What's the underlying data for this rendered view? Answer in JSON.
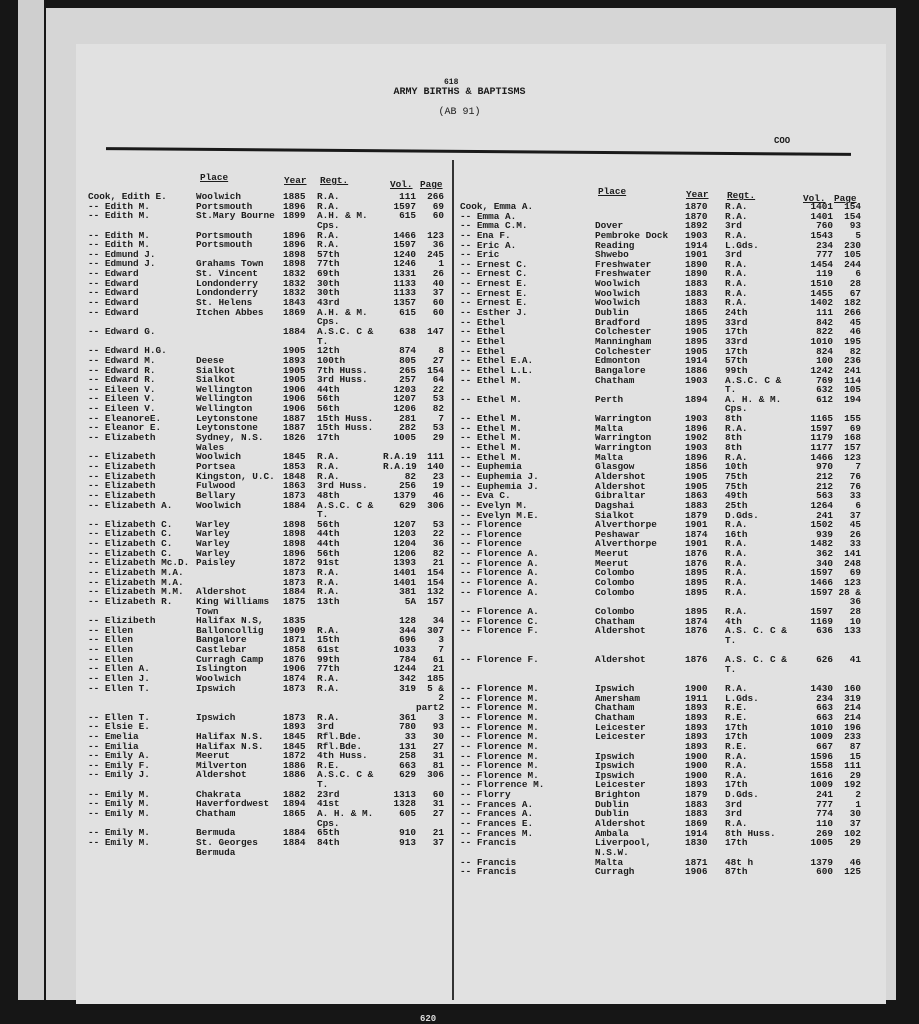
{
  "header": {
    "page_number": "618",
    "title": "ARMY BIRTHS & BAPTISMS",
    "subtitle": "(AB 91)",
    "index_code": "COO"
  },
  "columns": {
    "place": "Place",
    "year": "Year",
    "regt": "Regt.",
    "vol": "Vol.",
    "page": "Page"
  },
  "footer": {
    "page_number": "620"
  },
  "left_rows": [
    [
      "Cook, Edith E.",
      "Woolwich",
      "1885",
      "R.A.",
      "111",
      "266"
    ],
    [
      "-- Edith M.",
      "Portsmouth",
      "1896",
      "R.A.",
      "1597",
      "69"
    ],
    [
      "-- Edith M.",
      "St.Mary Bourne",
      "1899",
      "A.H. & M.",
      "615",
      "60"
    ],
    [
      "",
      "",
      "",
      "      Cps.",
      "",
      ""
    ],
    [
      "-- Edith M.",
      "Portsmouth",
      "1896",
      "R.A.",
      "1466",
      "123"
    ],
    [
      "-- Edith M.",
      "Portsmouth",
      "1896",
      "R.A.",
      "1597",
      "36"
    ],
    [
      "-- Edmund J.",
      "",
      "1898",
      "57th",
      "1240",
      "245"
    ],
    [
      "-- Edmund J.",
      "Grahams Town",
      "1898",
      "77th",
      "1246",
      "1"
    ],
    [
      "-- Edward",
      "St. Vincent",
      "1832",
      "69th",
      "1331",
      "26"
    ],
    [
      "-- Edward",
      "Londonderry",
      "1832",
      "30th",
      "1133",
      "40"
    ],
    [
      "-- Edward",
      "Londonderry",
      "1832",
      "30th",
      "1133",
      "37"
    ],
    [
      "-- Edward",
      "St. Helens",
      "1843",
      "43rd",
      "1357",
      "60"
    ],
    [
      "-- Edward",
      "Itchen Abbes",
      "1869",
      "A.H. & M.",
      "615",
      "60"
    ],
    [
      "",
      "",
      "",
      "      Cps.",
      "",
      ""
    ],
    [
      "-- Edward G.",
      "",
      "1884",
      "A.S.C. C &",
      "638",
      "147"
    ],
    [
      "",
      "",
      "",
      "       T.",
      "",
      ""
    ],
    [
      "-- Edward H.G.",
      "",
      "1905",
      "12th",
      "874",
      "8"
    ],
    [
      "-- Edward M.",
      "Deese",
      "1893",
      "100th",
      "805",
      "27"
    ],
    [
      "-- Edward R.",
      "Sialkot",
      "1905",
      "7th Huss.",
      "265",
      "154"
    ],
    [
      "-- Edward R.",
      "Sialkot",
      "1905",
      "3rd Huss.",
      "257",
      "64"
    ],
    [
      "-- Eileen V.",
      "Wellington",
      "1906",
      "44th",
      "1203",
      "22"
    ],
    [
      "-- Eileen V.",
      "Wellington",
      "1906",
      "56th",
      "1207",
      "53"
    ],
    [
      "-- Eileen V.",
      "Wellington",
      "1906",
      "56th",
      "1206",
      "82"
    ],
    [
      "-- EleanoreE.",
      "Leytonstone",
      "1887",
      "15th Huss.",
      "281",
      "7"
    ],
    [
      "-- Eleanor E.",
      "Leytonstone",
      "1887",
      "15th Huss.",
      "282",
      "53"
    ],
    [
      "-- Elizabeth",
      "Sydney, N.S.",
      "1826",
      "17th",
      "1005",
      "29"
    ],
    [
      "",
      "Wales",
      "",
      "",
      "",
      ""
    ],
    [
      "-- Elizabeth",
      "Woolwich",
      "1845",
      "R.A.",
      "R.A.19",
      "111"
    ],
    [
      "-- Elizabeth",
      "Portsea",
      "1853",
      "R.A.",
      "R.A.19",
      "140"
    ],
    [
      "-- Elizabeth",
      "Kingston, U.C.",
      "1848",
      "R.A.",
      "82",
      "23"
    ],
    [
      "-- Elizabeth",
      "Fulwood",
      "1863",
      "3rd Huss.",
      "256",
      "19"
    ],
    [
      "-- Elizabeth",
      "Bellary",
      "1873",
      "48th",
      "1379",
      "46"
    ],
    [
      "-- Elizabeth A.",
      "Woolwich",
      "1884",
      "A.S.C. C &",
      "629",
      "306"
    ],
    [
      "",
      "",
      "",
      "       T.",
      "",
      ""
    ],
    [
      "-- Elizabeth C.",
      "Warley",
      "1898",
      "56th",
      "1207",
      "53"
    ],
    [
      "-- Elizabeth C.",
      "Warley",
      "1898",
      "44th",
      "1203",
      "22"
    ],
    [
      "-- Elizabeth C.",
      "Warley",
      "1898",
      "44th",
      "1204",
      "36"
    ],
    [
      "-- Elizabeth C.",
      "Warley",
      "1896",
      "56th",
      "1206",
      "82"
    ],
    [
      "-- Elizabeth Mc.D.",
      "Paisley",
      "1872",
      "91st",
      "1393",
      "21"
    ],
    [
      "-- Elizabeth M.A.",
      "",
      "1873",
      "R.A.",
      "1401",
      "154"
    ],
    [
      "-- Elizabeth M.A.",
      "",
      "1873",
      "R.A.",
      "1401",
      "154"
    ],
    [
      "-- Elizabeth M.M.",
      "Aldershot",
      "1884",
      "R.A.",
      "381",
      "132"
    ],
    [
      "-- Elizabeth R.",
      "King Williams",
      "1875",
      "13th",
      "5A",
      "157"
    ],
    [
      "",
      "Town",
      "",
      "",
      "",
      ""
    ],
    [
      "-- Elizibeth",
      "Halifax N.S,",
      "1835",
      "",
      "128",
      "34"
    ],
    [
      "-- Ellen",
      "Balloncollig",
      "1909",
      "R.A.",
      "344",
      "307"
    ],
    [
      "-- Ellen",
      "Bangalore",
      "1871",
      "15th",
      "696",
      "3"
    ],
    [
      "-- Ellen",
      "Castlebar",
      "1858",
      "61st",
      "1033",
      "7"
    ],
    [
      "-- Ellen",
      "Curragh Camp",
      "1876",
      "99th",
      "784",
      "61"
    ],
    [
      "-- Ellen A.",
      "Islington",
      "1906",
      "77th",
      "1244",
      "21"
    ],
    [
      "-- Ellen J.",
      "Woolwich",
      "1874",
      "R.A.",
      "342",
      "185"
    ],
    [
      "-- Ellen T.",
      "Ipswich",
      "1873",
      "R.A.",
      "319",
      "5 &"
    ],
    [
      "",
      "",
      "",
      "",
      "",
      "2"
    ],
    [
      "",
      "",
      "",
      "",
      "",
      "part2"
    ],
    [
      "-- Ellen T.",
      "Ipswich",
      "1873",
      "R.A.",
      "361",
      "3"
    ],
    [
      "-- Elsie E.",
      "",
      "1893",
      "3rd",
      "780",
      "93"
    ],
    [
      "-- Emelia",
      "Halifax N.S.",
      "1845",
      "Rfl.Bde.",
      "33",
      "30"
    ],
    [
      "-- Emilia",
      "Halifax N.S.",
      "1845",
      "Rfl.Bde.",
      "131",
      "27"
    ],
    [
      "-- Emily A.",
      "Meerut",
      "1872",
      "4th Huss.",
      "258",
      "31"
    ],
    [
      "-- Emily F.",
      "Milverton",
      "1886",
      "R.E.",
      "663",
      "81"
    ],
    [
      "-- Emily J.",
      "Aldershot",
      "1886",
      "A.S.C. C &",
      "629",
      "306"
    ],
    [
      "",
      "",
      "",
      "       T.",
      "",
      ""
    ],
    [
      "-- Emily M.",
      "Chakrata",
      "1882",
      "23rd",
      "1313",
      "60"
    ],
    [
      "-- Emily M.",
      "Haverfordwest",
      "1894",
      "41st",
      "1328",
      "31"
    ],
    [
      "-- Emily M.",
      "Chatham",
      "1865",
      "A. H. & M.",
      "605",
      "27"
    ],
    [
      "",
      "",
      "",
      "      Cps.",
      "",
      ""
    ],
    [
      "-- Emily M.",
      "Bermuda",
      "1884",
      "65th",
      "910",
      "21"
    ],
    [
      "-- Emily M.",
      "St. Georges",
      "1884",
      "84th",
      "913",
      "37"
    ],
    [
      "",
      "Bermuda",
      "",
      "",
      "",
      ""
    ]
  ],
  "right_rows": [
    [
      "Cook, Emma A.",
      "",
      "1870",
      "R.A.",
      "1401",
      "154"
    ],
    [
      "-- Emma A.",
      "",
      "1870",
      "R.A.",
      "1401",
      "154"
    ],
    [
      "-- Emma C.M.",
      "Dover",
      "1892",
      "3rd",
      "760",
      "93"
    ],
    [
      "-- Ena F.",
      "Pembroke Dock",
      "1903",
      "R.A.",
      "1543",
      "5"
    ],
    [
      "-- Eric A.",
      "Reading",
      "1914",
      "L.Gds.",
      "234",
      "230"
    ],
    [
      "-- Eric",
      "Shwebo",
      "1901",
      "3rd",
      "777",
      "105"
    ],
    [
      "-- Ernest C.",
      "Freshwater",
      "1890",
      "R.A.",
      "1454",
      "244"
    ],
    [
      "-- Ernest C.",
      "Freshwater",
      "1890",
      "R.A.",
      "119",
      "6"
    ],
    [
      "-- Ernest E.",
      "Woolwich",
      "1883",
      "R.A.",
      "1510",
      "28"
    ],
    [
      "-- Ernest E.",
      "Woolwich",
      "1883",
      "R.A.",
      "1455",
      "67"
    ],
    [
      "-- Ernest E.",
      "Woolwich",
      "1883",
      "R.A.",
      "1402",
      "182"
    ],
    [
      "-- Esther J.",
      "Dublin",
      "1865",
      "24th",
      "111",
      "266"
    ],
    [
      "-- Ethel",
      "Bradford",
      "1895",
      "33rd",
      "842",
      "45"
    ],
    [
      "-- Ethel",
      "Colchester",
      "1905",
      "17th",
      "822",
      "46"
    ],
    [
      "-- Ethel",
      "Manningham",
      "1895",
      "33rd",
      "1010",
      "195"
    ],
    [
      "-- Ethel",
      "Colchester",
      "1905",
      "17th",
      "824",
      "82"
    ],
    [
      "-- Ethel E.A.",
      "Edmonton",
      "1914",
      "57th",
      "100",
      "236"
    ],
    [
      "-- Ethel L.L.",
      "Bangalore",
      "1886",
      "99th",
      "1242",
      "241"
    ],
    [
      "-- Ethel M.",
      "Chatham",
      "1903",
      "A.S.C. C &",
      "769",
      "114"
    ],
    [
      "",
      "",
      "",
      "       T.",
      "632",
      "105"
    ],
    [
      "-- Ethel M.",
      "Perth",
      "1894",
      "A. H. & M.",
      "612",
      "194"
    ],
    [
      "",
      "",
      "",
      "      Cps.",
      "",
      ""
    ],
    [
      "-- Ethel M.",
      "Warrington",
      "1903",
      "8th",
      "1165",
      "155"
    ],
    [
      "-- Ethel M.",
      "Malta",
      "1896",
      "R.A.",
      "1597",
      "69"
    ],
    [
      "-- Ethel M.",
      "Warrington",
      "1902",
      "8th",
      "1179",
      "168"
    ],
    [
      "-- Ethel M.",
      "Warrington",
      "1903",
      "8th",
      "1177",
      "157"
    ],
    [
      "-- Ethel M.",
      "Malta",
      "1896",
      "R.A.",
      "1466",
      "123"
    ],
    [
      "-- Euphemia",
      "Glasgow",
      "1856",
      "10th",
      "970",
      "7"
    ],
    [
      "-- Euphemia J.",
      "Aldershot",
      "1905",
      "75th",
      "212",
      "76"
    ],
    [
      "-- Euphemia J.",
      "Aldershot",
      "1905",
      "75th",
      "212",
      "76"
    ],
    [
      "-- Eva C.",
      "Gibraltar",
      "1863",
      "49th",
      "563",
      "33"
    ],
    [
      "-- Evelyn M.",
      "Dagshai",
      "1883",
      "25th",
      "1264",
      "6"
    ],
    [
      "-- Evelyn M.E.",
      "Sialkot",
      "1879",
      "D.Gds.",
      "241",
      "37"
    ],
    [
      "-- Florence",
      "Alverthorpe",
      "1901",
      "R.A.",
      "1502",
      "45"
    ],
    [
      "-- Florence",
      "Peshawar",
      "1874",
      "16th",
      "939",
      "26"
    ],
    [
      "-- Florence",
      "Alverthorpe",
      "1901",
      "R.A.",
      "1482",
      "33"
    ],
    [
      "-- Florence A.",
      "Meerut",
      "1876",
      "R.A.",
      "362",
      "141"
    ],
    [
      "-- Florence A.",
      "Meerut",
      "1876",
      "R.A.",
      "340",
      "248"
    ],
    [
      "-- Florence A.",
      "Colombo",
      "1895",
      "R.A.",
      "1597",
      "69"
    ],
    [
      "-- Florence A.",
      "Colombo",
      "1895",
      "R.A.",
      "1466",
      "123"
    ],
    [
      "-- Florence A.",
      "Colombo",
      "1895",
      "R.A.",
      "1597",
      "28 &"
    ],
    [
      "",
      "",
      "",
      "",
      "",
      "36"
    ],
    [
      "-- Florence A.",
      "Colombo",
      "1895",
      "R.A.",
      "1597",
      "28"
    ],
    [
      "-- Florence C.",
      "Chatham",
      "1874",
      "4th",
      "1169",
      "10"
    ],
    [
      "-- Florence F.",
      "Aldershot",
      "1876",
      "A.S. C. C &",
      "636",
      "133"
    ],
    [
      "",
      "",
      "",
      "       T.",
      "",
      ""
    ],
    [
      "",
      "",
      "",
      "",
      "",
      ""
    ],
    [
      "-- Florence F.",
      "Aldershot",
      "1876",
      "A.S. C. C &",
      "626",
      "41"
    ],
    [
      "",
      "",
      "",
      "       T.",
      "",
      ""
    ],
    [
      "",
      "",
      "",
      "",
      "",
      ""
    ],
    [
      "-- Florence M.",
      "Ipswich",
      "1900",
      "R.A.",
      "1430",
      "160"
    ],
    [
      "-- Florence M.",
      "Amersham",
      "1911",
      "L.Gds.",
      "234",
      "319"
    ],
    [
      "-- Florence M.",
      "Chatham",
      "1893",
      "R.E.",
      "663",
      "214"
    ],
    [
      "-- Florence M.",
      "Chatham",
      "1893",
      "R.E.",
      "663",
      "214"
    ],
    [
      "-- Florence M.",
      "Leicester",
      "1893",
      "17th",
      "1010",
      "196"
    ],
    [
      "-- Florence M.",
      "Leicester",
      "1893",
      "17th",
      "1009",
      "233"
    ],
    [
      "-- Florence M.",
      "",
      "1893",
      "R.E.",
      "667",
      "87"
    ],
    [
      "-- Florence M.",
      "Ipswich",
      "1900",
      "R.A.",
      "1596",
      "15"
    ],
    [
      "-- Florence M.",
      "Ipswich",
      "1900",
      "R.A.",
      "1558",
      "111"
    ],
    [
      "-- Florence M.",
      "Ipswich",
      "1900",
      "R.A.",
      "1616",
      "29"
    ],
    [
      "-- Florrence M.",
      "Leicester",
      "1893",
      "17th",
      "1009",
      "192"
    ],
    [
      "-- Florry",
      "Brighton",
      "1879",
      "D.Gds.",
      "241",
      "2"
    ],
    [
      "-- Frances A.",
      "Dublin",
      "1883",
      "3rd",
      "777",
      "1"
    ],
    [
      "-- Frances A.",
      "Dublin",
      "1883",
      "3rd",
      "774",
      "30"
    ],
    [
      "-- Frances E.",
      "Aldershot",
      "1869",
      "R.A.",
      "110",
      "37"
    ],
    [
      "-- Frances M.",
      "Ambala",
      "1914",
      "8th Huss.",
      "269",
      "102"
    ],
    [
      "-- Francis",
      "Liverpool,",
      "1830",
      "17th",
      "1005",
      "29"
    ],
    [
      "",
      "N.S.W.",
      "",
      "",
      "",
      ""
    ],
    [
      "-- Francis",
      "Malta",
      "1871",
      "48t h",
      "1379",
      "46"
    ],
    [
      "-- Francis",
      "Curragh",
      "1906",
      "87th",
      "600",
      "125"
    ]
  ]
}
